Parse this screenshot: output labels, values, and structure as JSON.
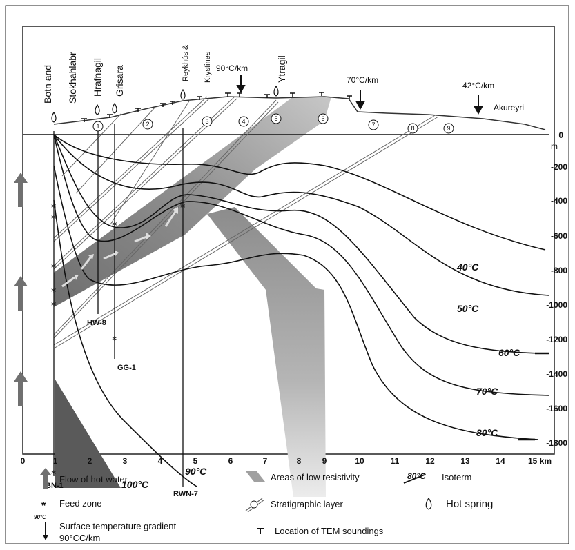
{
  "top_labels": {
    "botn": "Botn and",
    "stokhahlabr": "Stokhahlabr",
    "hrafnagil": "Hrafnagil",
    "grisara": "Grisara",
    "reykhus": "Reykhús &",
    "krystines": "Krystines",
    "ytragil": "Ytragil",
    "akureyri": "Akureyri"
  },
  "gradients": {
    "g90": "90°C/km",
    "g70": "70°C/km",
    "g42": "42°C/km"
  },
  "wells": {
    "hw8": "HW-8",
    "gg1": "GG-1",
    "bn1": "BN-1",
    "rwn7": "RWN-7"
  },
  "layers": [
    "1",
    "2",
    "3",
    "4",
    "5",
    "6",
    "7",
    "8",
    "9"
  ],
  "depth_axis": {
    "unit": "m",
    "ticks": [
      "0",
      "-200",
      "-400",
      "-600",
      "-800",
      "-1000",
      "-1200",
      "-1400",
      "-1600",
      "-1800"
    ]
  },
  "distance_axis": {
    "ticks": [
      "0",
      "1",
      "2",
      "3",
      "4",
      "5",
      "6",
      "7",
      "8",
      "9",
      "10",
      "11",
      "12",
      "13",
      "14",
      "15 km"
    ]
  },
  "isotherms": {
    "t40": "40°C",
    "t50": "50°C",
    "t60": "60°C",
    "t70": "70°C",
    "t80": "80°C",
    "t90": "90°C",
    "t100": "100°C"
  },
  "legend": {
    "flow": "Flow of hot water",
    "feed": "Feed zone",
    "surface_gradient_line1": "Surface temperature gradient",
    "surface_gradient_line2": "90°CC/km",
    "surface_gradient_symbol": "90°C",
    "low_res": "Areas of low resistivity",
    "strat": "Stratigraphic layer",
    "tem": "Location of TEM soundings",
    "isoterm": "Isoterm",
    "isoterm_symbol": "80°C",
    "hot_spring": "Hot spring"
  },
  "colors": {
    "flow_band": "#6a6a6a",
    "arrow_gray": "#707070",
    "low_res_gray": "#9a9a9a",
    "hot_zone": "#5a5a5a"
  }
}
